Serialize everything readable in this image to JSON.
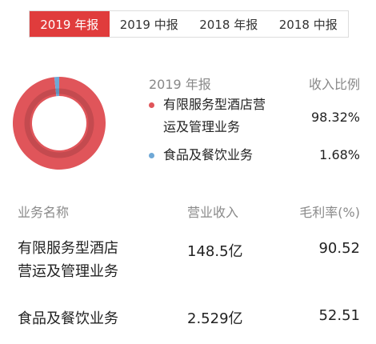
{
  "tabs": [
    {
      "label": "2019 年报",
      "active": true
    },
    {
      "label": "2019 中报",
      "active": false
    },
    {
      "label": "2018 年报",
      "active": false
    },
    {
      "label": "2018 中报",
      "active": false
    }
  ],
  "legend": {
    "year_label": "2019 年报",
    "ratio_label": "收入比例",
    "items": [
      {
        "name_line1": "有限服务型酒店营",
        "name_line2": "运及管理业务",
        "ratio": "98.32%",
        "color": "#e0555a"
      },
      {
        "name_line1": "食品及餐饮业务",
        "ratio": "1.68%",
        "color": "#6fa8d6"
      }
    ]
  },
  "chart_data": {
    "type": "pie",
    "categories": [
      "有限服务型酒店营运及管理业务",
      "食品及餐饮业务"
    ],
    "values": [
      98.32,
      1.68
    ],
    "colors": [
      "#e0555a",
      "#6fa8d6"
    ]
  },
  "table": {
    "headers": [
      "业务名称",
      "营业收入",
      "毛利率(%)"
    ],
    "rows": [
      {
        "name_line1": "有限服务型酒店",
        "name_line2": "营运及管理业务",
        "revenue": "148.5亿",
        "margin": "90.52"
      },
      {
        "name_line1": "食品及餐饮业务",
        "revenue": "2.529亿",
        "margin": "52.51"
      }
    ]
  }
}
